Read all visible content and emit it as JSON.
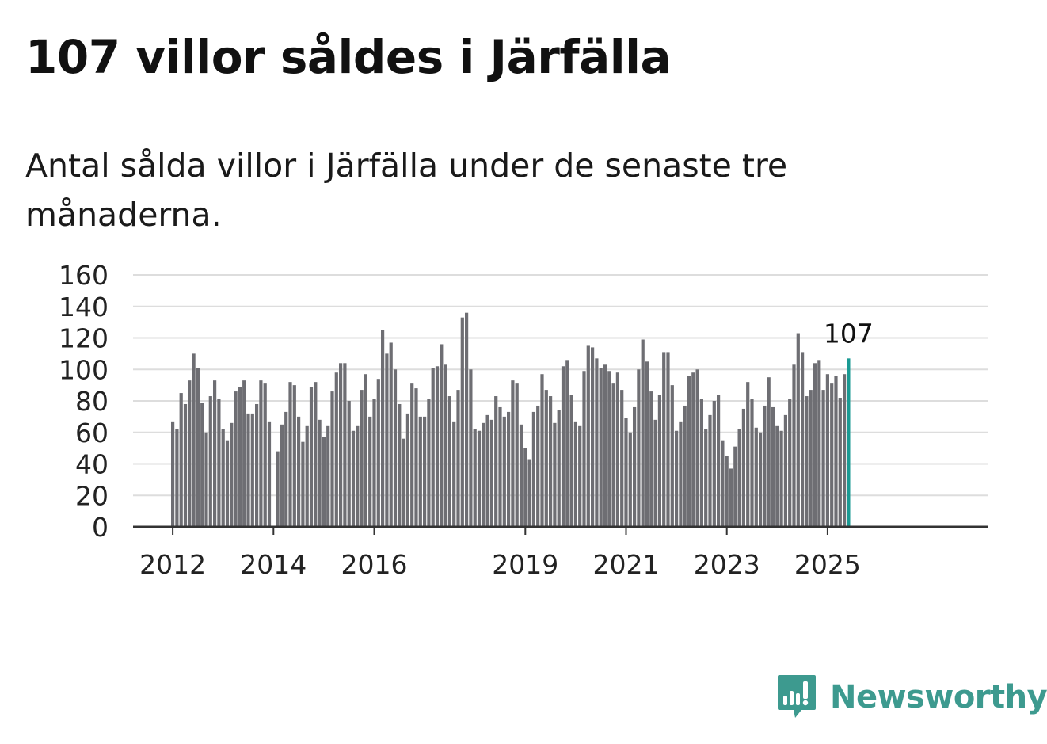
{
  "title": "107 villor såldes i Järfälla",
  "subtitle": "Antal sålda villor i Järfälla under de senaste tre månaderna.",
  "brand": {
    "name": "Newsworthy",
    "color": "#3d9a8f",
    "icon": "newsworthy-logo-icon"
  },
  "colors": {
    "bar": "#6e6e73",
    "highlight": "#1a9a93",
    "grid": "#dddddd",
    "axis": "#333333"
  },
  "chart_data": {
    "type": "bar",
    "title": "107 villor såldes i Järfälla",
    "subtitle": "Antal sålda villor i Järfälla under de senaste tre månaderna.",
    "xlabel": "",
    "ylabel": "",
    "ylim": [
      0,
      160
    ],
    "yticks": [
      0,
      20,
      40,
      60,
      80,
      100,
      120,
      140,
      160
    ],
    "xticks": [
      "2012",
      "2014",
      "2016",
      "2019",
      "2021",
      "2023",
      "2025"
    ],
    "grid": true,
    "start": "2012-01",
    "interval": "month",
    "values": [
      67,
      62,
      85,
      78,
      93,
      110,
      101,
      79,
      60,
      83,
      93,
      81,
      62,
      55,
      66,
      86,
      89,
      93,
      72,
      72,
      78,
      93,
      91,
      67,
      0,
      48,
      65,
      73,
      92,
      90,
      70,
      54,
      64,
      89,
      92,
      68,
      57,
      64,
      86,
      98,
      104,
      104,
      80,
      61,
      64,
      87,
      97,
      70,
      81,
      94,
      125,
      110,
      117,
      100,
      78,
      56,
      72,
      91,
      88,
      70,
      70,
      81,
      101,
      102,
      116,
      103,
      83,
      67,
      87,
      133,
      136,
      100,
      62,
      61,
      66,
      71,
      68,
      83,
      76,
      70,
      73,
      93,
      91,
      65,
      50,
      43,
      73,
      77,
      97,
      87,
      83,
      66,
      74,
      102,
      106,
      84,
      67,
      64,
      99,
      115,
      114,
      107,
      101,
      103,
      99,
      91,
      98,
      87,
      69,
      60,
      76,
      100,
      119,
      105,
      86,
      68,
      84,
      111,
      111,
      90,
      61,
      67,
      77,
      96,
      98,
      100,
      81,
      62,
      71,
      80,
      84,
      55,
      45,
      37,
      51,
      62,
      75,
      92,
      81,
      63,
      60,
      77,
      95,
      76,
      64,
      61,
      71,
      81,
      103,
      123,
      111,
      83,
      87,
      104,
      106,
      87,
      97,
      91,
      96,
      82,
      97,
      107
    ],
    "highlight_label": "107"
  }
}
